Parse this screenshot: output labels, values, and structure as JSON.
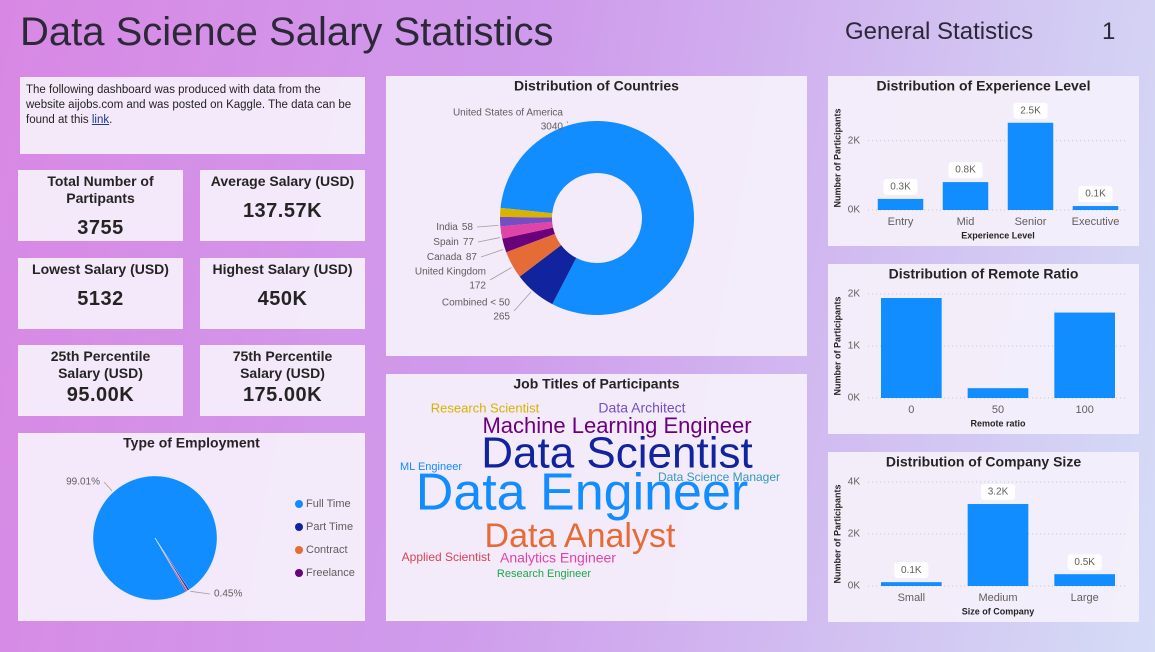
{
  "header": {
    "title": "Data Science Salary Statistics",
    "page_title": "General Statistics",
    "page_number": "1"
  },
  "intro": {
    "text": "The following dashboard was produced with data from the website aijobs.com and was posted on Kaggle. The data can be found at this ",
    "link": "link",
    "after": "."
  },
  "cards": [
    {
      "label": "Total Number of Partipants",
      "value": "3755"
    },
    {
      "label": "Average Salary (USD)",
      "value": "137.57K"
    },
    {
      "label": "Lowest Salary (USD)",
      "value": "5132"
    },
    {
      "label": "Highest Salary (USD)",
      "value": "450K"
    },
    {
      "label": "25th Percentile Salary (USD)",
      "value": "95.00K"
    },
    {
      "label": "75th Percentile Salary (USD)",
      "value": "175.00K"
    }
  ],
  "chart_data": [
    {
      "type": "pie",
      "title": "Type of Employment",
      "categories": [
        "Full Time",
        "Part Time",
        "Contract",
        "Freelance"
      ],
      "values": [
        99.01,
        0.45,
        0.27,
        0.27
      ],
      "value_labels": [
        "99.01%",
        "0.45%",
        null,
        null
      ],
      "colors": [
        "#118DFF",
        "#12239E",
        "#E66C37",
        "#6B007B"
      ],
      "legend": "right"
    },
    {
      "type": "donut",
      "title": "Distribution of Countries",
      "categories": [
        "United States of America",
        "Combined < 50",
        "United Kingdom",
        "Canada",
        "Spain",
        "India",
        null
      ],
      "values": [
        3040,
        265,
        172,
        87,
        77,
        58,
        56
      ],
      "colors": [
        "#118DFF",
        "#12239E",
        "#E66C37",
        "#6B007B",
        "#E044A7",
        "#744EC2",
        "#D9B300"
      ]
    },
    {
      "type": "wordcloud",
      "title": "Job Titles of Participants",
      "words": [
        {
          "text": "Research Scientist",
          "color": "#D9B300"
        },
        {
          "text": "Data Architect",
          "color": "#744EC2"
        },
        {
          "text": "Machine Learning Engineer",
          "color": "#6B007B"
        },
        {
          "text": "Data Scientist",
          "color": "#12239E"
        },
        {
          "text": "ML Engineer",
          "color": "#118DFF"
        },
        {
          "text": "Data Science Manager",
          "color": "#3599B8"
        },
        {
          "text": "Data Engineer",
          "color": "#118DFF"
        },
        {
          "text": "Data Analyst",
          "color": "#E66C37"
        },
        {
          "text": "Applied Scientist",
          "color": "#D64550"
        },
        {
          "text": "Analytics Engineer",
          "color": "#E044A7"
        },
        {
          "text": "Research Engineer",
          "color": "#1AAB40"
        }
      ]
    },
    {
      "type": "bar",
      "title": "Distribution of Experience Level",
      "x_label": "Experience Level",
      "y_label": "Number of Participants",
      "categories": [
        "Entry",
        "Mid",
        "Senior",
        "Executive"
      ],
      "values": [
        320,
        805,
        2516,
        114
      ],
      "value_labels": [
        "0.3K",
        "0.8K",
        "2.5K",
        "0.1K"
      ],
      "color": "#118DFF",
      "ylim": [
        0,
        3000
      ],
      "yticks": [
        {
          "value": 0,
          "label": "0K"
        },
        {
          "value": 2000,
          "label": "2K"
        }
      ],
      "grid": true
    },
    {
      "type": "bar",
      "title": "Distribution of Remote Ratio",
      "x_label": "Remote ratio",
      "y_label": "Number of Participants",
      "categories": [
        "0",
        "50",
        "100"
      ],
      "values": [
        1923,
        189,
        1643
      ],
      "color": "#118DFF",
      "ylim": [
        0,
        2000
      ],
      "yticks": [
        {
          "value": 0,
          "label": "0K"
        },
        {
          "value": 1000,
          "label": "1K"
        },
        {
          "value": 2000,
          "label": "2K"
        }
      ],
      "grid": true
    },
    {
      "type": "bar",
      "title": "Distribution of Company Size",
      "x_label": "Size of Company",
      "y_label": "Number of Participants",
      "categories": [
        "Small",
        "Medium",
        "Large"
      ],
      "values": [
        148,
        3153,
        454
      ],
      "value_labels": [
        "0.1K",
        "3.2K",
        "0.5K"
      ],
      "color": "#118DFF",
      "ylim": [
        0,
        4000
      ],
      "yticks": [
        {
          "value": 0,
          "label": "0K"
        },
        {
          "value": 2000,
          "label": "2K"
        },
        {
          "value": 4000,
          "label": "4K"
        }
      ],
      "grid": true
    }
  ]
}
